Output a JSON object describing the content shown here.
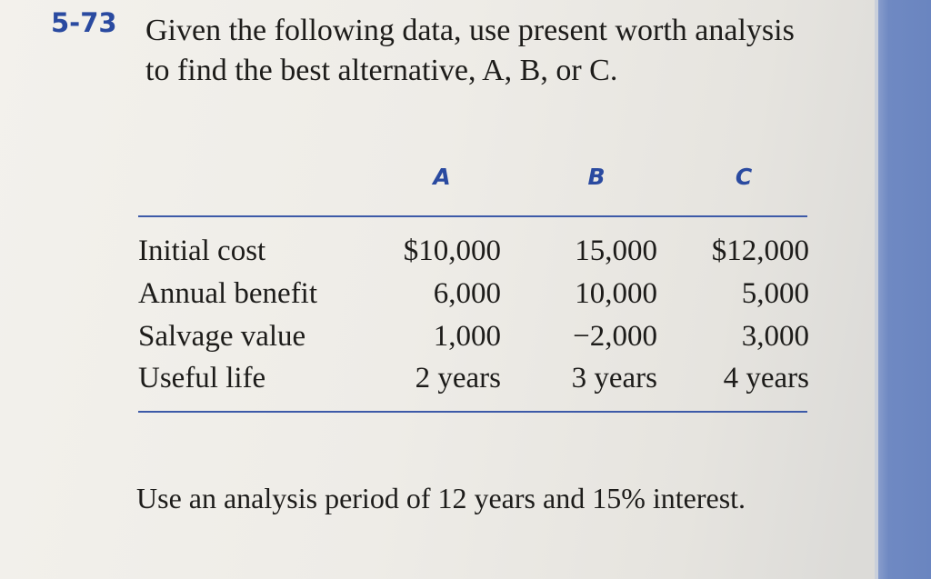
{
  "problem": {
    "number": "5-73",
    "statement_line1": "Given the following data, use present worth analysis",
    "statement_line2": "to find the best alternative, A, B, or C."
  },
  "table": {
    "columns": [
      "A",
      "B",
      "C"
    ],
    "rows": [
      {
        "label": "Initial cost",
        "values": [
          "$10,000",
          "15,000",
          "$12,000"
        ]
      },
      {
        "label": "Annual benefit",
        "values": [
          "6,000",
          "10,000",
          "5,000"
        ]
      },
      {
        "label": "Salvage value",
        "values": [
          "1,000",
          "−2,000",
          "3,000"
        ]
      },
      {
        "label": "Useful life",
        "values": [
          "2 years",
          "3 years",
          "4 years"
        ]
      }
    ]
  },
  "note": "Use an analysis period of 12 years and 15% interest."
}
